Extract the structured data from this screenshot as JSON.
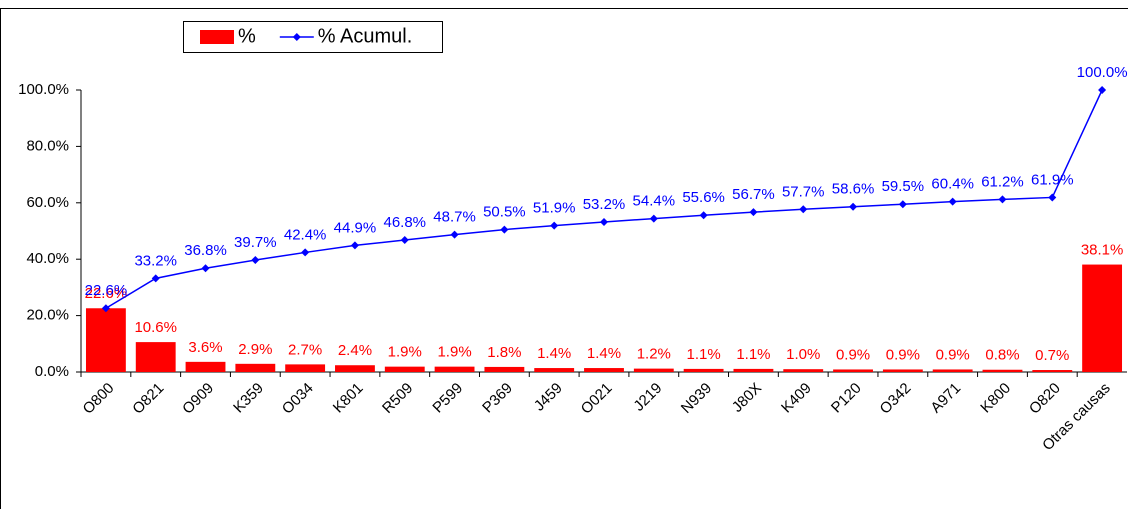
{
  "chart_data": {
    "type": "pareto",
    "categories": [
      "O800",
      "O821",
      "O909",
      "K359",
      "O034",
      "K801",
      "R509",
      "P599",
      "P369",
      "J459",
      "O021",
      "J219",
      "N939",
      "J80X",
      "K409",
      "P120",
      "O342",
      "A971",
      "K800",
      "O820",
      "Otras causas"
    ],
    "series": [
      {
        "name": "%",
        "type": "bar",
        "color": "#ff0000",
        "values": [
          22.6,
          10.6,
          3.6,
          2.9,
          2.7,
          2.4,
          1.9,
          1.9,
          1.8,
          1.4,
          1.4,
          1.2,
          1.1,
          1.1,
          1.0,
          0.9,
          0.9,
          0.9,
          0.8,
          0.7,
          38.1
        ],
        "value_labels": [
          "22.6%",
          "10.6%",
          "3.6%",
          "2.9%",
          "2.7%",
          "2.4%",
          "1.9%",
          "1.9%",
          "1.8%",
          "1.4%",
          "1.4%",
          "1.2%",
          "1.1%",
          "1.1%",
          "1.0%",
          "0.9%",
          "0.9%",
          "0.9%",
          "0.8%",
          "0.7%",
          "38.1%"
        ]
      },
      {
        "name": "% Acumul.",
        "type": "line",
        "color": "#0000ff",
        "values": [
          22.6,
          33.2,
          36.8,
          39.7,
          42.4,
          44.9,
          46.8,
          48.7,
          50.5,
          51.9,
          53.2,
          54.4,
          55.6,
          56.7,
          57.7,
          58.6,
          59.5,
          60.4,
          61.2,
          61.9,
          100.0
        ],
        "value_labels": [
          "22.6%",
          "33.2%",
          "36.8%",
          "39.7%",
          "42.4%",
          "44.9%",
          "46.8%",
          "48.7%",
          "50.5%",
          "51.9%",
          "53.2%",
          "54.4%",
          "55.6%",
          "56.7%",
          "57.7%",
          "58.6%",
          "59.5%",
          "60.4%",
          "61.2%",
          "61.9%",
          "100.0%"
        ]
      }
    ],
    "ylim": [
      0,
      100
    ],
    "yticks": [
      {
        "value": 0,
        "label": "0.0%"
      },
      {
        "value": 20,
        "label": "20.0%"
      },
      {
        "value": 40,
        "label": "40.0%"
      },
      {
        "value": 60,
        "label": "60.0%"
      },
      {
        "value": 80,
        "label": "80.0%"
      },
      {
        "value": 100,
        "label": "100.0%"
      }
    ],
    "legend": "top-left"
  }
}
